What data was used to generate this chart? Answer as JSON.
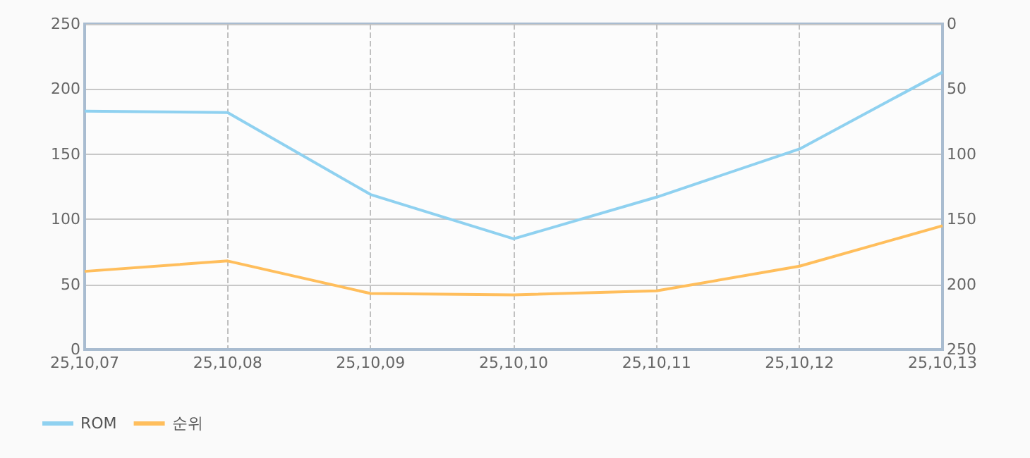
{
  "chart_data": {
    "type": "line",
    "categories": [
      "25,10,07",
      "25,10,08",
      "25,10,09",
      "25,10,10",
      "25,10,11",
      "25,10,12",
      "25,10,13"
    ],
    "series": [
      {
        "name": "ROM",
        "color": "#8fd1f0",
        "values": [
          183,
          182,
          119,
          85,
          117,
          154,
          213
        ]
      },
      {
        "name": "순위",
        "color": "#ffbe5c",
        "axis": "y2",
        "values": [
          190,
          182,
          207,
          208,
          205,
          186,
          155
        ]
      }
    ],
    "ylim": [
      0,
      250
    ],
    "yticks": [
      0,
      50,
      100,
      150,
      200,
      250
    ],
    "y2lim": [
      250,
      0
    ],
    "y2ticks": [
      0,
      50,
      100,
      150,
      200,
      250
    ],
    "grid": true,
    "legend": "bottom left",
    "marker": "none",
    "line_style": "solid"
  }
}
